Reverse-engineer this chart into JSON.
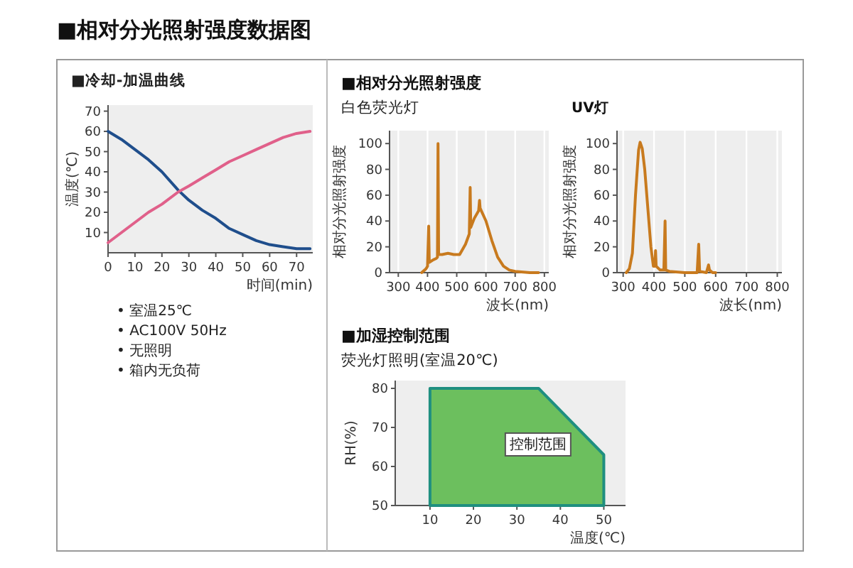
{
  "chart_data": [
    {
      "type": "line",
      "title": "■相对分光照射强度数据图",
      "subtitle": "■冷却-加温曲线",
      "xlabel": "时间(min)",
      "ylabel": "温度(℃)",
      "xlim": [
        0,
        76
      ],
      "xticks": [
        0,
        10,
        20,
        30,
        40,
        50,
        60,
        70
      ],
      "ylim": [
        0,
        73
      ],
      "yticks": [
        10,
        20,
        30,
        40,
        50,
        60,
        70
      ],
      "annotations": [
        "• 室温25℃",
        "• AC100V 50Hz",
        "• 无照明",
        "• 箱内无负荷"
      ],
      "series": [
        {
          "color": "#1f4e8c",
          "x": [
            0,
            5,
            10,
            15,
            20,
            26,
            30,
            35,
            40,
            45,
            50,
            55,
            60,
            65,
            70,
            75
          ],
          "values": [
            60,
            56,
            51,
            46,
            40,
            31,
            26,
            21,
            17,
            12,
            9,
            6,
            4,
            3,
            2,
            2
          ]
        },
        {
          "color": "#e0608a",
          "x": [
            0,
            5,
            10,
            15,
            20,
            26,
            30,
            35,
            40,
            45,
            50,
            55,
            60,
            65,
            70,
            75
          ],
          "values": [
            5,
            10,
            15,
            20,
            24,
            30,
            33,
            37,
            41,
            45,
            48,
            51,
            54,
            57,
            59,
            60
          ]
        }
      ]
    },
    {
      "type": "line",
      "title": "■相对分光照射强度",
      "subtitle": "白色荧光灯",
      "xlabel": "波长(nm)",
      "ylabel": "相对分光照射强度",
      "xlim": [
        270,
        815
      ],
      "xticks": [
        300,
        400,
        500,
        600,
        700,
        800
      ],
      "ylim": [
        0,
        110
      ],
      "yticks": [
        0,
        20,
        40,
        60,
        80,
        100
      ],
      "grid": "x",
      "series": [
        {
          "color": "#c87a1e",
          "x": [
            380,
            395,
            400,
            404,
            406,
            420,
            430,
            434,
            436,
            438,
            450,
            470,
            490,
            510,
            530,
            543,
            546,
            548,
            560,
            575,
            578,
            580,
            600,
            620,
            640,
            660,
            680,
            700,
            750,
            780
          ],
          "values": [
            0,
            3,
            5,
            36,
            8,
            10,
            11,
            12,
            100,
            14,
            14,
            15,
            14,
            14,
            22,
            30,
            66,
            35,
            42,
            48,
            56,
            50,
            40,
            25,
            12,
            5,
            2,
            1,
            0,
            0
          ]
        }
      ]
    },
    {
      "type": "line",
      "title": "UV灯",
      "xlabel": "波长(nm)",
      "ylabel": "相对分光照射强度",
      "xlim": [
        280,
        815
      ],
      "xticks": [
        300,
        400,
        500,
        600,
        700,
        800
      ],
      "ylim": [
        0,
        110
      ],
      "yticks": [
        0,
        20,
        40,
        60,
        80,
        100
      ],
      "grid": "x",
      "series": [
        {
          "color": "#c87a1e",
          "x": [
            310,
            320,
            330,
            340,
            350,
            355,
            362,
            370,
            380,
            390,
            398,
            403,
            405,
            407,
            420,
            432,
            436,
            438,
            450,
            500,
            540,
            545,
            548,
            570,
            577,
            580,
            590,
            600
          ],
          "values": [
            0,
            3,
            15,
            60,
            95,
            101,
            96,
            80,
            50,
            20,
            5,
            5,
            17,
            5,
            2,
            2,
            40,
            2,
            1,
            0,
            0,
            22,
            1,
            0,
            6,
            2,
            0,
            0
          ]
        }
      ]
    },
    {
      "type": "area",
      "title": "■加湿控制范围",
      "subtitle": "荧光灯照明(室温20℃)",
      "xlabel": "温度(℃)",
      "ylabel": "RH(%)",
      "xlim": [
        2,
        55
      ],
      "xticks": [
        10,
        20,
        30,
        40,
        50
      ],
      "ylim": [
        50,
        82
      ],
      "yticks": [
        50,
        60,
        70,
        80
      ],
      "annotations": [
        "控制范围"
      ],
      "series": [
        {
          "color": "#6cbf5e",
          "x": [
            10,
            35,
            50
          ],
          "values": [
            80,
            80,
            63
          ]
        }
      ]
    }
  ]
}
